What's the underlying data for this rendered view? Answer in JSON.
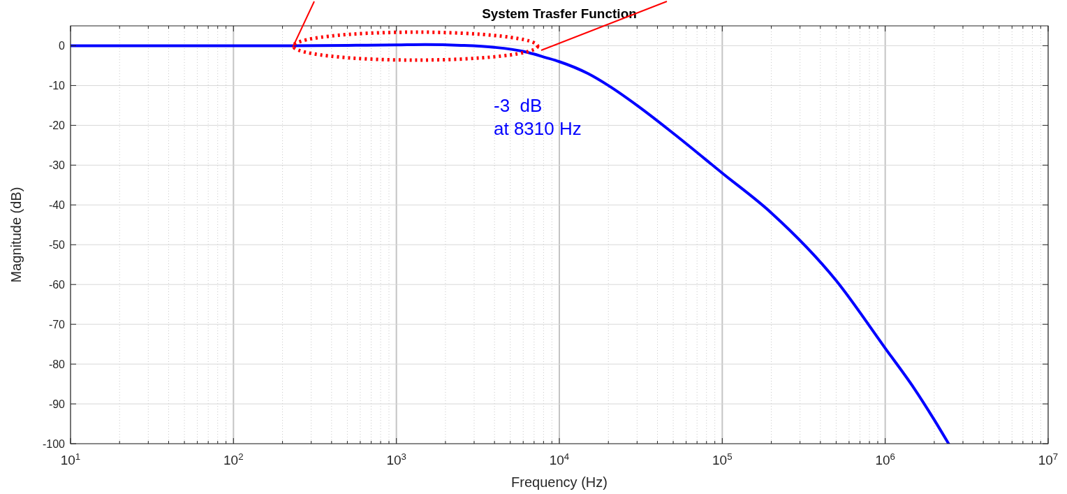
{
  "chart_data": {
    "type": "line",
    "title": "System Trasfer Function",
    "xlabel": "Frequency (Hz)",
    "ylabel": "Magnitude (dB)",
    "log": "x",
    "grid": true,
    "marker": "none",
    "line_style": "solid",
    "xlim": [
      10,
      10000000
    ],
    "xticks": [
      {
        "value": 10,
        "label": "10$^{1}$"
      },
      {
        "value": 100,
        "label": "10$^{2}$"
      },
      {
        "value": 1000,
        "label": "10$^{3}$"
      },
      {
        "value": 10000,
        "label": "10$^{4}$"
      },
      {
        "value": 100000,
        "label": "10$^{5}$"
      },
      {
        "value": 1000000,
        "label": "10$^{6}$"
      },
      {
        "value": 10000000,
        "label": "10$^{7}$"
      }
    ],
    "ylim": [
      -100,
      5
    ],
    "yticks": [
      -100,
      -90,
      -80,
      -70,
      -60,
      -50,
      -40,
      -30,
      -20,
      -10,
      0
    ],
    "annotations": [
      "-3  dB\nat 8310 Hz"
    ],
    "series": [
      {
        "color": "#0000ff",
        "x": [
          10,
          100,
          200,
          500,
          1000,
          1500,
          2500,
          4000,
          6000,
          8310,
          10000,
          15000,
          20000,
          30000,
          50000,
          100000,
          200000,
          500000,
          1000000,
          1500000,
          2000000,
          2450000
        ],
        "values": [
          0,
          0,
          0,
          0.1,
          0.2,
          0.3,
          0.1,
          -0.4,
          -1.4,
          -3,
          -4,
          -7,
          -10,
          -15,
          -22,
          -32,
          -42,
          -59,
          -76,
          -86,
          -94,
          -100
        ]
      }
    ]
  }
}
